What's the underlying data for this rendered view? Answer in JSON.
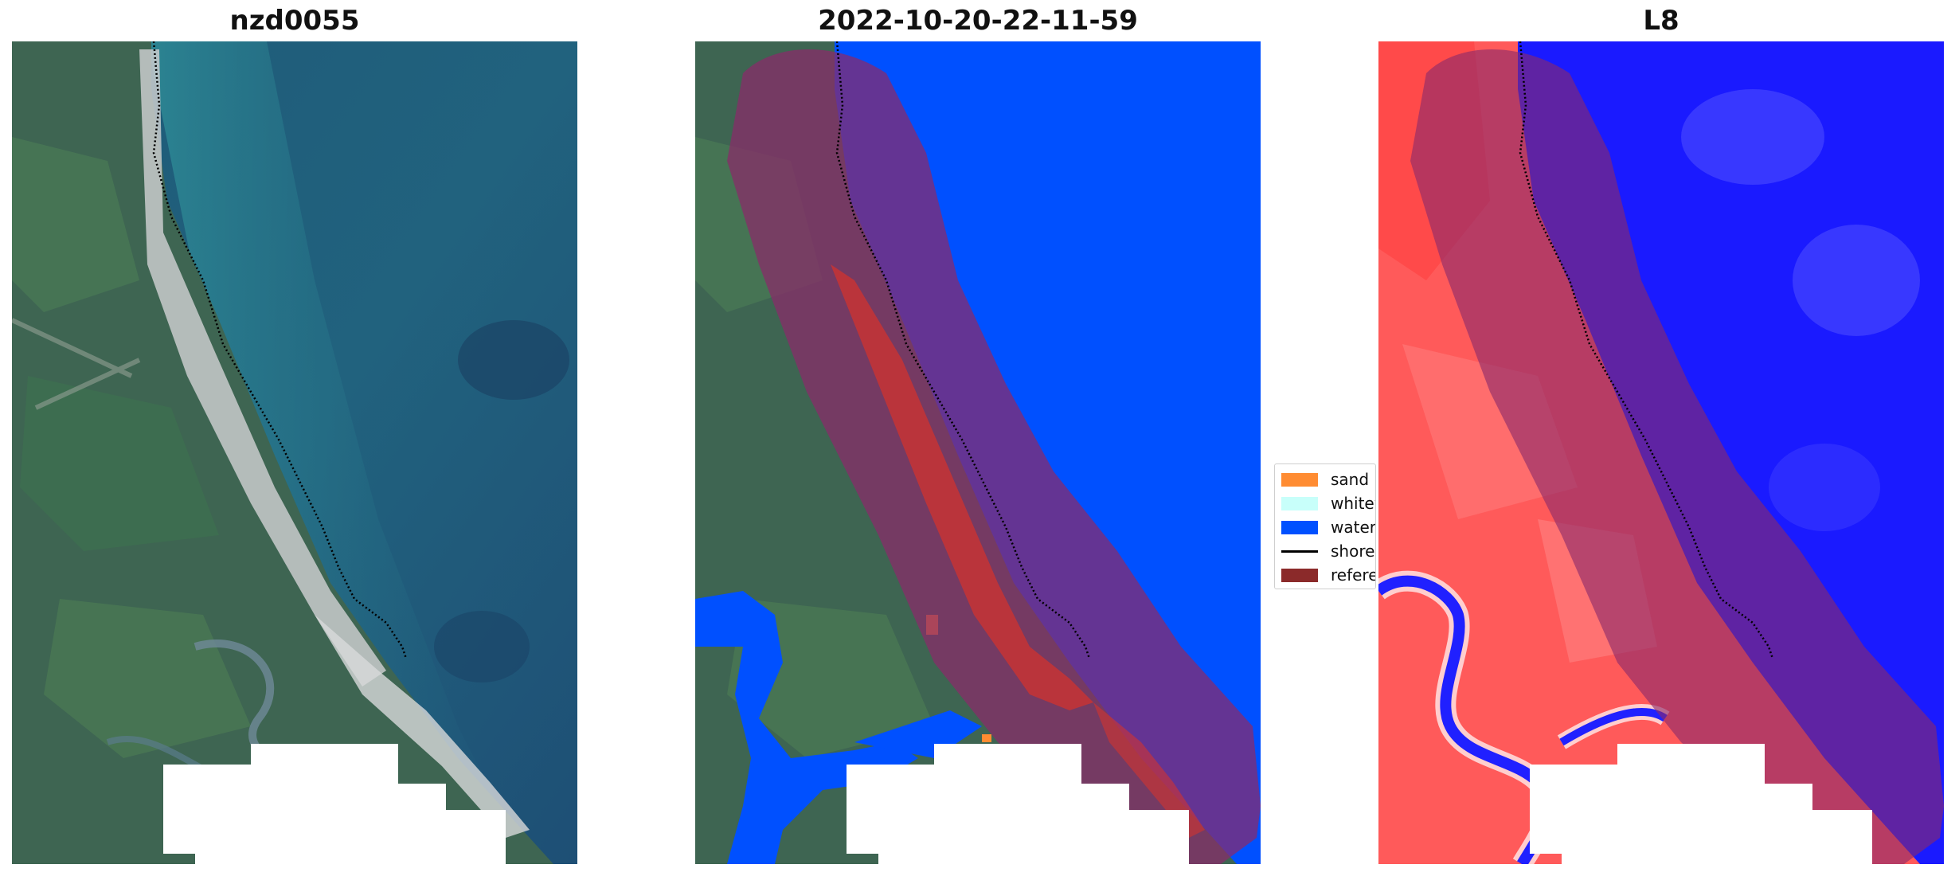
{
  "panels": [
    {
      "title": "nzd0055"
    },
    {
      "title": "2022-10-20-22-11-59"
    },
    {
      "title": "L8"
    }
  ],
  "legend": {
    "items": [
      {
        "label": "sand",
        "color": "#ff8c32",
        "kind": "patch"
      },
      {
        "label": "whitew",
        "color": "#c8fffa",
        "kind": "patch"
      },
      {
        "label": "water",
        "color": "#0050ff",
        "kind": "patch"
      },
      {
        "label": "shorel",
        "color": "#000000",
        "kind": "line"
      },
      {
        "label": "referen",
        "color": "#8b2a2a",
        "kind": "patch"
      }
    ]
  },
  "colors": {
    "water_class": "#0050ff",
    "sand_class": "#ff8c32",
    "reference_buffer": "#8b2a2a",
    "index_land": "#ff5a5a",
    "index_water": "#1a1aff",
    "nodata": "#ffffff",
    "shoreline": "#000000"
  }
}
